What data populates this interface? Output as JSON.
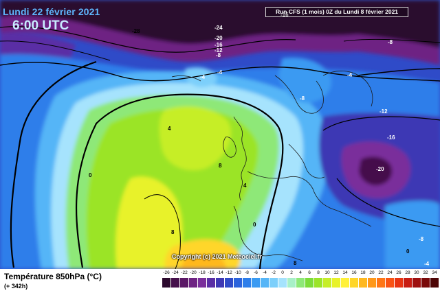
{
  "header": {
    "date_label": "Lundi 22 février 2021",
    "time_label": "6:00 UTC",
    "run_label": "Run CFS (1 mois) 0Z du Lundi 8 février 2021"
  },
  "map": {
    "copyright": "Copyright (c) 2021 Meteociel.fr",
    "contour_labels": [
      {
        "text": "-28",
        "light": false
      },
      {
        "text": "-24",
        "light": false
      },
      {
        "text": "-20",
        "light": true
      },
      {
        "text": "-16",
        "light": true
      },
      {
        "text": "-12",
        "light": true
      },
      {
        "text": "-8",
        "light": true
      },
      {
        "text": "-8",
        "light": true
      },
      {
        "text": "-4",
        "light": true
      },
      {
        "text": "-4",
        "light": true
      },
      {
        "text": "-4",
        "light": true
      },
      {
        "text": "-8",
        "light": true
      },
      {
        "text": "-12",
        "light": true
      },
      {
        "text": "-16",
        "light": true
      },
      {
        "text": "-20",
        "light": true
      },
      {
        "text": "4",
        "light": false
      },
      {
        "text": "8",
        "light": false
      },
      {
        "text": "4",
        "light": false
      },
      {
        "text": "0",
        "light": false
      },
      {
        "text": "0",
        "light": false
      },
      {
        "text": "8",
        "light": false
      },
      {
        "text": "8",
        "light": false
      },
      {
        "text": "0",
        "light": false
      },
      {
        "text": "-8",
        "light": true
      },
      {
        "text": "-4",
        "light": true
      },
      {
        "text": "-16",
        "light": true
      }
    ]
  },
  "footer": {
    "parameter_label": "Température 850hPa (°C)",
    "lead_label": "(+ 342h)"
  },
  "legend": {
    "ticks": [
      "-26",
      "-24",
      "-22",
      "-20",
      "-18",
      "-16",
      "-14",
      "-12",
      "-10",
      "-8",
      "-6",
      "-4",
      "-2",
      "0",
      "2",
      "4",
      "6",
      "8",
      "10",
      "12",
      "14",
      "16",
      "18",
      "20",
      "22",
      "24",
      "26",
      "28",
      "30",
      "32",
      "34"
    ],
    "colors": [
      "#2c0a2e",
      "#45104b",
      "#5b1866",
      "#6e2383",
      "#7a2f9b",
      "#5a2ea5",
      "#3e38b4",
      "#2f4bc8",
      "#2b63dc",
      "#2d7eea",
      "#3a9af2",
      "#55b5f7",
      "#7ccffb",
      "#a6e3fd",
      "#a8f0c8",
      "#8ee878",
      "#7cdc3a",
      "#9be428",
      "#c6ee28",
      "#e8f22a",
      "#fff13a",
      "#ffd629",
      "#ffb81f",
      "#ff981a",
      "#ff7616",
      "#f95314",
      "#e83412",
      "#c81c12",
      "#9e1010",
      "#7a0a0a",
      "#4e0606"
    ]
  }
}
